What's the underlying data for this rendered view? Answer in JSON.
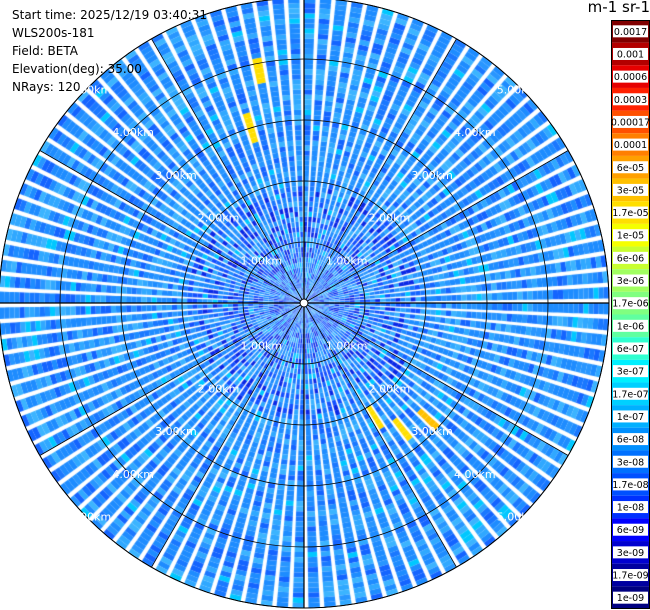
{
  "info": {
    "start_time": "Start time: 2025/12/19 03:40:31",
    "instrument": "WLS200s-181",
    "field": "Field: BETA",
    "elevation": "Elevation(deg): 35.00",
    "nrays": "NRays: 120"
  },
  "colorbar": {
    "unit_label": "m-1 sr-1",
    "ticks": [
      "0.0017",
      "0.001",
      "0.0006",
      "0.0003",
      "0.00017",
      "0.0001",
      "6e-05",
      "3e-05",
      "1.7e-05",
      "1e-05",
      "6e-06",
      "3e-06",
      "1.7e-06",
      "1e-06",
      "6e-07",
      "3e-07",
      "1.7e-07",
      "1e-07",
      "6e-08",
      "3e-08",
      "1.7e-08",
      "1e-08",
      "6e-09",
      "3e-09",
      "1.7e-09",
      "1e-09"
    ],
    "colors": [
      "#800000",
      "#b30000",
      "#e60000",
      "#ff2000",
      "#ff5000",
      "#ff7f00",
      "#ffa000",
      "#ffc000",
      "#ffdf00",
      "#f5ff00",
      "#c8ff30",
      "#a0ff60",
      "#80ff80",
      "#60ffa0",
      "#30ffd0",
      "#00f0ff",
      "#00d0ff",
      "#00b0ff",
      "#0090ff",
      "#0070ff",
      "#0050ff",
      "#0030ff",
      "#0000ff",
      "#0000d0",
      "#0000a0",
      "#000080"
    ]
  },
  "chart_data": {
    "type": "heatmap",
    "projection": "polar PPI",
    "nrays": 120,
    "range_rings_km": [
      1,
      2,
      3,
      4,
      5
    ],
    "range_ring_labels": [
      "1.00km",
      "2.00km",
      "3.00km",
      "4.00km",
      "5.00km"
    ],
    "max_range_km": 5.0,
    "dominant_value": "3e-08",
    "hotspots": [
      {
        "azimuth_deg": 347,
        "range_km": 3.9,
        "value": "1.7e-05"
      },
      {
        "azimuth_deg": 342,
        "range_km": 3.0,
        "value": "1.7e-05"
      },
      {
        "azimuth_deg": 148,
        "range_km": 2.2,
        "value": "1.7e-05"
      },
      {
        "azimuth_deg": 140,
        "range_km": 2.6,
        "value": "1.7e-05"
      },
      {
        "azimuth_deg": 132,
        "range_km": 2.8,
        "value": "3e-05"
      }
    ]
  }
}
